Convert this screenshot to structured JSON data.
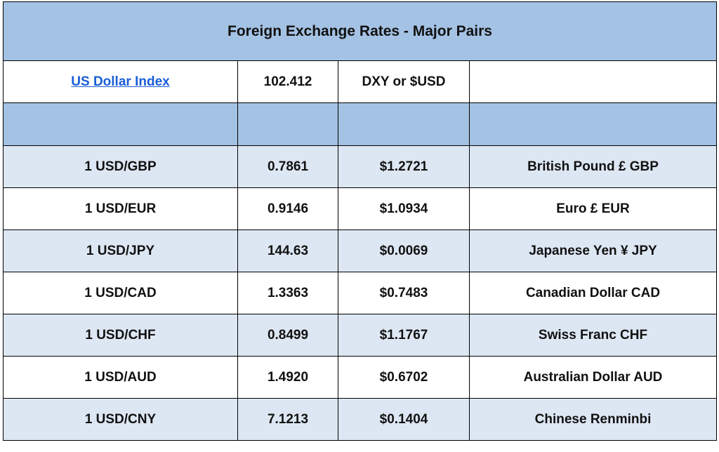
{
  "title": "Foreign Exchange Rates - Major Pairs",
  "index": {
    "label": "US Dollar Index",
    "value": "102.412",
    "note": "DXY or $USD",
    "extra": ""
  },
  "rates": [
    {
      "pair": "1 USD/GBP",
      "rate": "0.7861",
      "inverse": "$1.2721",
      "currency": "British Pound £ GBP"
    },
    {
      "pair": "1 USD/EUR",
      "rate": "0.9146",
      "inverse": "$1.0934",
      "currency": "Euro £ EUR"
    },
    {
      "pair": "1 USD/JPY",
      "rate": "144.63",
      "inverse": "$0.0069",
      "currency": "Japanese Yen ¥ JPY"
    },
    {
      "pair": "1 USD/CAD",
      "rate": "1.3363",
      "inverse": "$0.7483",
      "currency": "Canadian Dollar CAD"
    },
    {
      "pair": "1 USD/CHF",
      "rate": "0.8499",
      "inverse": "$1.1767",
      "currency": "Swiss Franc CHF"
    },
    {
      "pair": "1 USD/AUD",
      "rate": "1.4920",
      "inverse": "$0.6702",
      "currency": "Australian Dollar AUD"
    },
    {
      "pair": "1 USD/CNY",
      "rate": "7.1213",
      "inverse": "$0.1404",
      "currency": "Chinese Renminbi"
    }
  ],
  "colors": {
    "header_fill": "#a4c2e4",
    "shaded_row_fill": "#dde7f3",
    "link": "#1a5ed6",
    "border": "#000000"
  }
}
